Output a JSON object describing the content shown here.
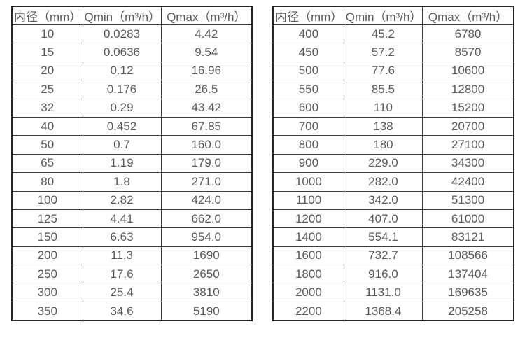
{
  "styles": {
    "background": "#ffffff",
    "text_color": "#595959",
    "inner_border_color": "#3b3b3b",
    "outer_border_color": "#262626"
  },
  "chart_data": [
    {
      "type": "table",
      "title": "",
      "headers": [
        "内径（mm）",
        "Qmin（m³/h）",
        "Qmax（m³/h）"
      ],
      "rows": [
        [
          "10",
          "0.0283",
          "4.42"
        ],
        [
          "15",
          "0.0636",
          "9.54"
        ],
        [
          "20",
          "0.12",
          "16.96"
        ],
        [
          "25",
          "0.176",
          "26.5"
        ],
        [
          "32",
          "0.29",
          "43.42"
        ],
        [
          "40",
          "0.452",
          "67.85"
        ],
        [
          "50",
          "0.7",
          "160.0"
        ],
        [
          "65",
          "1.19",
          "179.0"
        ],
        [
          "80",
          "1.8",
          "271.0"
        ],
        [
          "100",
          "2.82",
          "424.0"
        ],
        [
          "125",
          "4.41",
          "662.0"
        ],
        [
          "150",
          "6.63",
          "954.0"
        ],
        [
          "200",
          "11.3",
          "1690"
        ],
        [
          "250",
          "17.6",
          "2650"
        ],
        [
          "300",
          "25.4",
          "3810"
        ],
        [
          "350",
          "34.6",
          "5190"
        ]
      ]
    },
    {
      "type": "table",
      "title": "",
      "headers": [
        "内径（mm）",
        "Qmin（m³/h）",
        "Qmax（m³/h）"
      ],
      "rows": [
        [
          "400",
          "45.2",
          "6780"
        ],
        [
          "450",
          "57.2",
          "8570"
        ],
        [
          "500",
          "77.6",
          "10600"
        ],
        [
          "550",
          "85.5",
          "12800"
        ],
        [
          "600",
          "110",
          "15200"
        ],
        [
          "700",
          "138",
          "20700"
        ],
        [
          "800",
          "180",
          "27100"
        ],
        [
          "900",
          "229.0",
          "34300"
        ],
        [
          "1000",
          "282.0",
          "42400"
        ],
        [
          "1100",
          "342.0",
          "51300"
        ],
        [
          "1200",
          "407.0",
          "61000"
        ],
        [
          "1400",
          "554.1",
          "83121"
        ],
        [
          "1600",
          "732.7",
          "108566"
        ],
        [
          "1800",
          "916.0",
          "137404"
        ],
        [
          "2000",
          "1131.0",
          "169635"
        ],
        [
          "2200",
          "1368.4",
          "205258"
        ]
      ]
    }
  ]
}
